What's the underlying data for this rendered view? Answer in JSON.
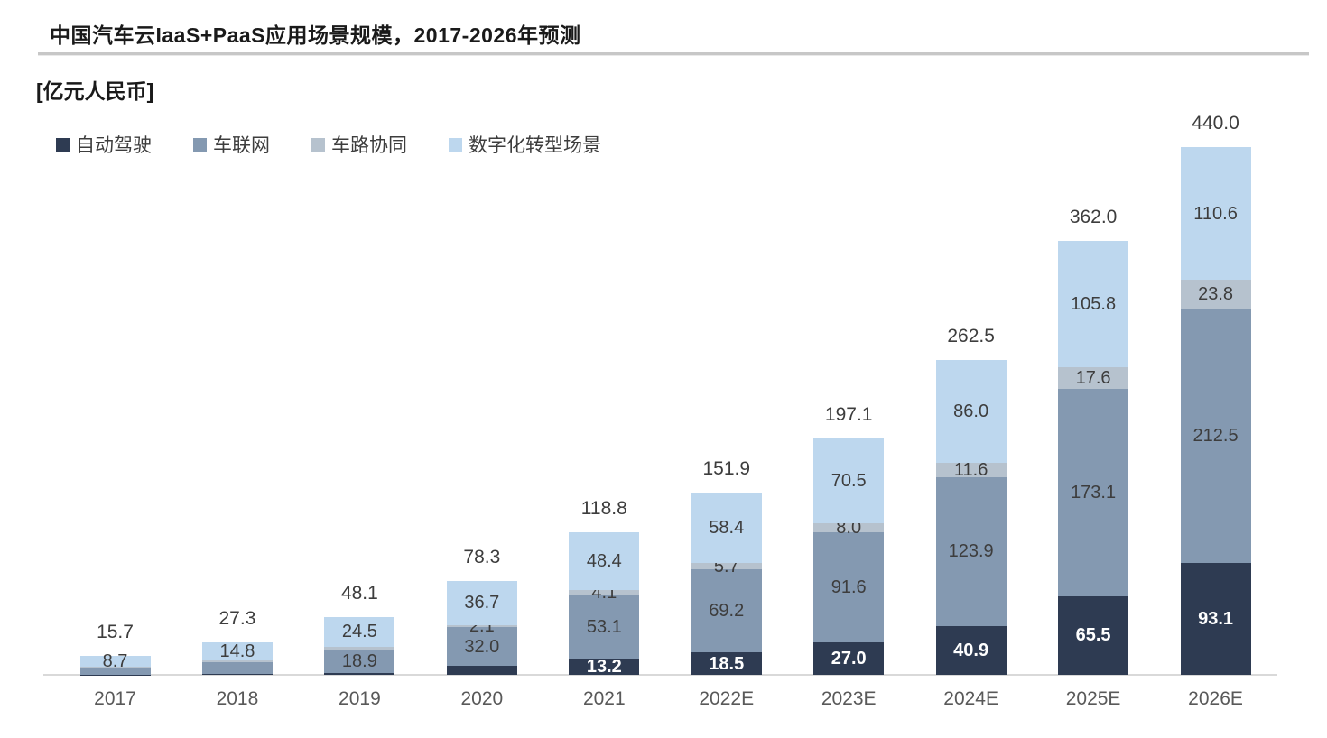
{
  "page": {
    "title": "中国汽车云IaaS+PaaS应用场景规模，2017-2026年预测",
    "unit_label": "[亿元人民币]"
  },
  "chart_data": {
    "type": "bar",
    "stacked": true,
    "title": "中国汽车云IaaS+PaaS应用场景规模，2017-2026年预测",
    "unit": "亿元人民币",
    "grid": false,
    "legend_position": "top-left",
    "categories": [
      "2017",
      "2018",
      "2019",
      "2020",
      "2021",
      "2022E",
      "2023E",
      "2024E",
      "2025E",
      "2026E"
    ],
    "series": [
      {
        "name": "自动驾驶",
        "color": "#2E3B52",
        "label_color": "#FFFFFF",
        "values": [
          0.3,
          0.5,
          1.5,
          7.5,
          13.2,
          18.5,
          27.0,
          40.9,
          65.5,
          93.1
        ],
        "labels": [
          "",
          "",
          "",
          "",
          "13.2",
          "18.5",
          "27.0",
          "40.9",
          "65.5",
          "93.1"
        ]
      },
      {
        "name": "车联网",
        "color": "#8499B1",
        "label_color": "#3D3D3D",
        "values": [
          5.7,
          10.0,
          18.9,
          32.0,
          53.1,
          69.2,
          91.6,
          123.9,
          173.1,
          212.5
        ],
        "labels": [
          "",
          "",
          "18.9",
          "32.0",
          "53.1",
          "69.2",
          "91.6",
          "123.9",
          "173.1",
          "212.5"
        ]
      },
      {
        "name": "车路协同",
        "color": "#B6C2CE",
        "label_color": "#3D3D3D",
        "values": [
          1.0,
          2.0,
          3.2,
          2.1,
          4.1,
          5.7,
          8.0,
          11.6,
          17.6,
          23.8
        ],
        "labels": [
          "",
          "",
          "",
          "2.1",
          "4.1",
          "5.7",
          "8.0",
          "11.6",
          "17.6",
          "23.8"
        ]
      },
      {
        "name": "数字化转型场景",
        "color": "#BDD7EE",
        "label_color": "#3D3D3D",
        "values": [
          8.7,
          14.8,
          24.5,
          36.7,
          48.4,
          58.4,
          70.5,
          86.0,
          105.8,
          110.6
        ],
        "labels": [
          "8.7",
          "14.8",
          "24.5",
          "36.7",
          "48.4",
          "58.4",
          "70.5",
          "86.0",
          "105.8",
          "110.6"
        ]
      }
    ],
    "totals": [
      "15.7",
      "27.3",
      "48.1",
      "78.3",
      "118.8",
      "151.9",
      "197.1",
      "262.5",
      "362.0",
      "440.0"
    ],
    "ylim": [
      0,
      460
    ],
    "colors": {
      "axis_line": "#D9D9D9",
      "total_label_text": "#3D3D3D",
      "tick_text": "#595959",
      "title_text": "#1A1A1A"
    }
  }
}
